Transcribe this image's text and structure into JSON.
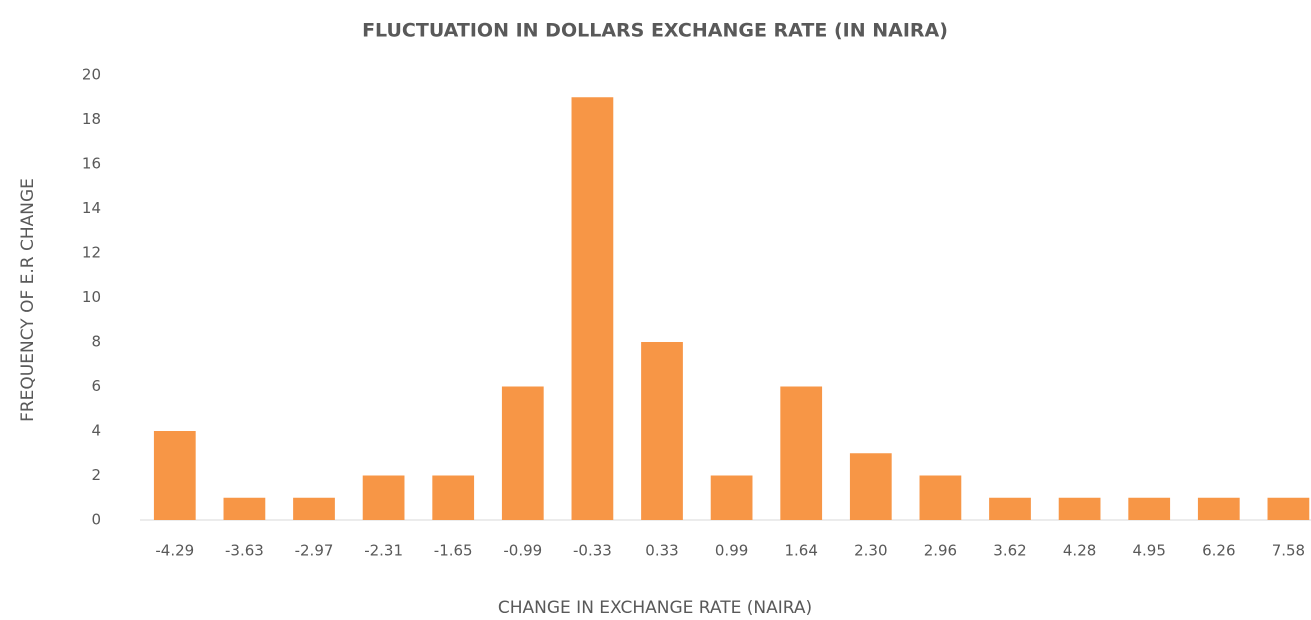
{
  "chart_data": {
    "type": "bar",
    "title": "FLUCTUATION IN DOLLARS EXCHANGE RATE (IN NAIRA)",
    "x_label": "CHANGE IN EXCHANGE RATE (NAIRA)",
    "y_label": "FREQUENCY OF E.R CHANGE",
    "categories": [
      "-4.29",
      "-3.63",
      "-2.97",
      "-2.31",
      "-1.65",
      "-0.99",
      "-0.33",
      "0.33",
      "0.99",
      "1.64",
      "2.30",
      "2.96",
      "3.62",
      "4.28",
      "4.95",
      "6.26",
      "7.58"
    ],
    "values": [
      4,
      1,
      1,
      2,
      2,
      6,
      19,
      8,
      2,
      6,
      3,
      2,
      1,
      1,
      1,
      1,
      1
    ],
    "color": "#f79646",
    "ylim": [
      0,
      20
    ],
    "yticks": [
      0,
      2,
      4,
      6,
      8,
      10,
      12,
      14,
      16,
      18,
      20
    ],
    "grid": false
  }
}
